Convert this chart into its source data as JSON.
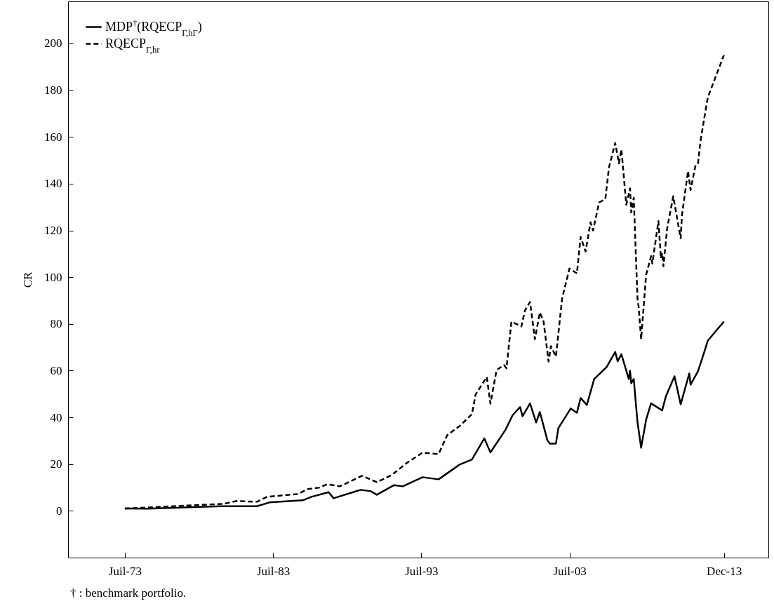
{
  "chart_data": {
    "type": "line",
    "ylabel": "CR",
    "legend": "top left",
    "grid": false,
    "annotations": [
      "† : benchmark portfolio."
    ],
    "xlim": [
      "1969-09",
      "2016-12"
    ],
    "xticks": [
      {
        "value": "1973-07",
        "label": "Juil-73"
      },
      {
        "value": "1983-07",
        "label": "Juil-83"
      },
      {
        "value": "1993-07",
        "label": "Juil-93"
      },
      {
        "value": "2003-07",
        "label": "Juil-03"
      },
      {
        "value": "2013-12",
        "label": "Dec-13"
      }
    ],
    "ylim": [
      -20,
      218
    ],
    "yticks": [
      0,
      20,
      40,
      60,
      80,
      100,
      120,
      140,
      160,
      180,
      200
    ],
    "series": [
      {
        "name": "MDP$^{†}$(RQECP$_{Γ,hΓ}$)",
        "color": "#000000",
        "line_style": "solid",
        "x": [
          "1973-07",
          "1975-01",
          "1977-10",
          "1980-01",
          "1982-06",
          "1983-04",
          "1985-07",
          "1986-02",
          "1987-04",
          "1987-08",
          "1989-06",
          "1990-02",
          "1990-07",
          "1991-09",
          "1992-04",
          "1993-08",
          "1994-09",
          "1996-02",
          "1996-12",
          "1997-10",
          "1998-03",
          "1999-03",
          "1999-09",
          "2000-03",
          "2000-05",
          "2000-11",
          "2001-04",
          "2001-07",
          "2002-01",
          "2002-03",
          "2002-08",
          "2002-10",
          "2003-08",
          "2004-01",
          "2004-04",
          "2004-09",
          "2005-03",
          "2006-01",
          "2006-08",
          "2006-10",
          "2007-01",
          "2007-07",
          "2007-08",
          "2007-09",
          "2007-11",
          "2008-02",
          "2008-05",
          "2008-09",
          "2009-01",
          "2009-10",
          "2010-01",
          "2010-08",
          "2011-01",
          "2011-08",
          "2011-09",
          "2012-03",
          "2012-08",
          "2012-11",
          "2013-12"
        ],
        "values": [
          1.0,
          0.9,
          1.5,
          2.0,
          2.0,
          3.6,
          4.5,
          6.0,
          8.0,
          5.4,
          9.0,
          8.4,
          6.9,
          11,
          10.5,
          14.4,
          13.5,
          19.8,
          22,
          31,
          25,
          34.5,
          41,
          44.4,
          40.5,
          46,
          37.8,
          42.3,
          30.3,
          28.8,
          28.8,
          35.4,
          43.8,
          42,
          48.3,
          45.3,
          56.4,
          61.5,
          68,
          64,
          67,
          56.4,
          60,
          54.6,
          56.4,
          38,
          27,
          39,
          46,
          43,
          49,
          57.6,
          45.6,
          58.8,
          54,
          59.7,
          67.8,
          72.9,
          81
        ]
      },
      {
        "name": "RQECP$_{Γ,hr}$",
        "color": "#000000",
        "line_style": "dashed",
        "x": [
          "1973-07",
          "1980-03",
          "1981-01",
          "1982-06",
          "1983-02",
          "1985-03",
          "1985-11",
          "1986-08",
          "1987-03",
          "1988-01",
          "1989-07",
          "1990-07",
          "1991-07",
          "1992-07",
          "1993-08",
          "1994-09",
          "1995-04",
          "1996-02",
          "1996-12",
          "1997-03",
          "1997-12",
          "1998-03",
          "1998-08",
          "1999-02",
          "1999-04",
          "1999-08",
          "2000-04",
          "2000-07",
          "2000-11",
          "2001-03",
          "2001-07",
          "2001-10",
          "2002-02",
          "2002-04",
          "2002-08",
          "2003-01",
          "2003-07",
          "2004-01",
          "2004-04",
          "2004-08",
          "2004-12",
          "2005-02",
          "2005-07",
          "2005-12",
          "2006-03",
          "2006-08",
          "2006-11",
          "2007-01",
          "2007-05",
          "2007-08",
          "2007-09",
          "2007-11",
          "2008-02",
          "2008-03",
          "2008-05",
          "2008-09",
          "2009-01",
          "2009-02",
          "2009-07",
          "2009-09",
          "2009-10",
          "2009-11",
          "2010-02",
          "2010-07",
          "2011-01",
          "2011-02",
          "2011-07",
          "2011-09",
          "2012-01",
          "2012-03",
          "2012-05",
          "2012-09",
          "2012-11",
          "2013-12"
        ],
        "values": [
          1,
          3,
          4.2,
          3.9,
          6,
          7.2,
          9.3,
          9.9,
          11.4,
          10.5,
          15,
          12.3,
          15.3,
          20.4,
          24.9,
          24.3,
          32.4,
          36.3,
          41.4,
          49.8,
          57.3,
          45.9,
          60.3,
          62.4,
          61,
          81,
          78.9,
          85.8,
          89.4,
          73.5,
          84.9,
          81,
          63.9,
          70.5,
          66,
          90.9,
          103.7,
          101.6,
          117.2,
          111,
          123.5,
          120,
          132,
          133.4,
          147,
          157.4,
          148.7,
          154.7,
          131,
          138,
          127.7,
          134,
          90.9,
          87.3,
          73.5,
          101,
          109,
          105.8,
          124,
          108,
          110.3,
          104.6,
          120.8,
          134.6,
          116.6,
          126.5,
          145.4,
          137.3,
          147.8,
          148.4,
          158,
          171,
          177,
          195
        ]
      }
    ]
  }
}
